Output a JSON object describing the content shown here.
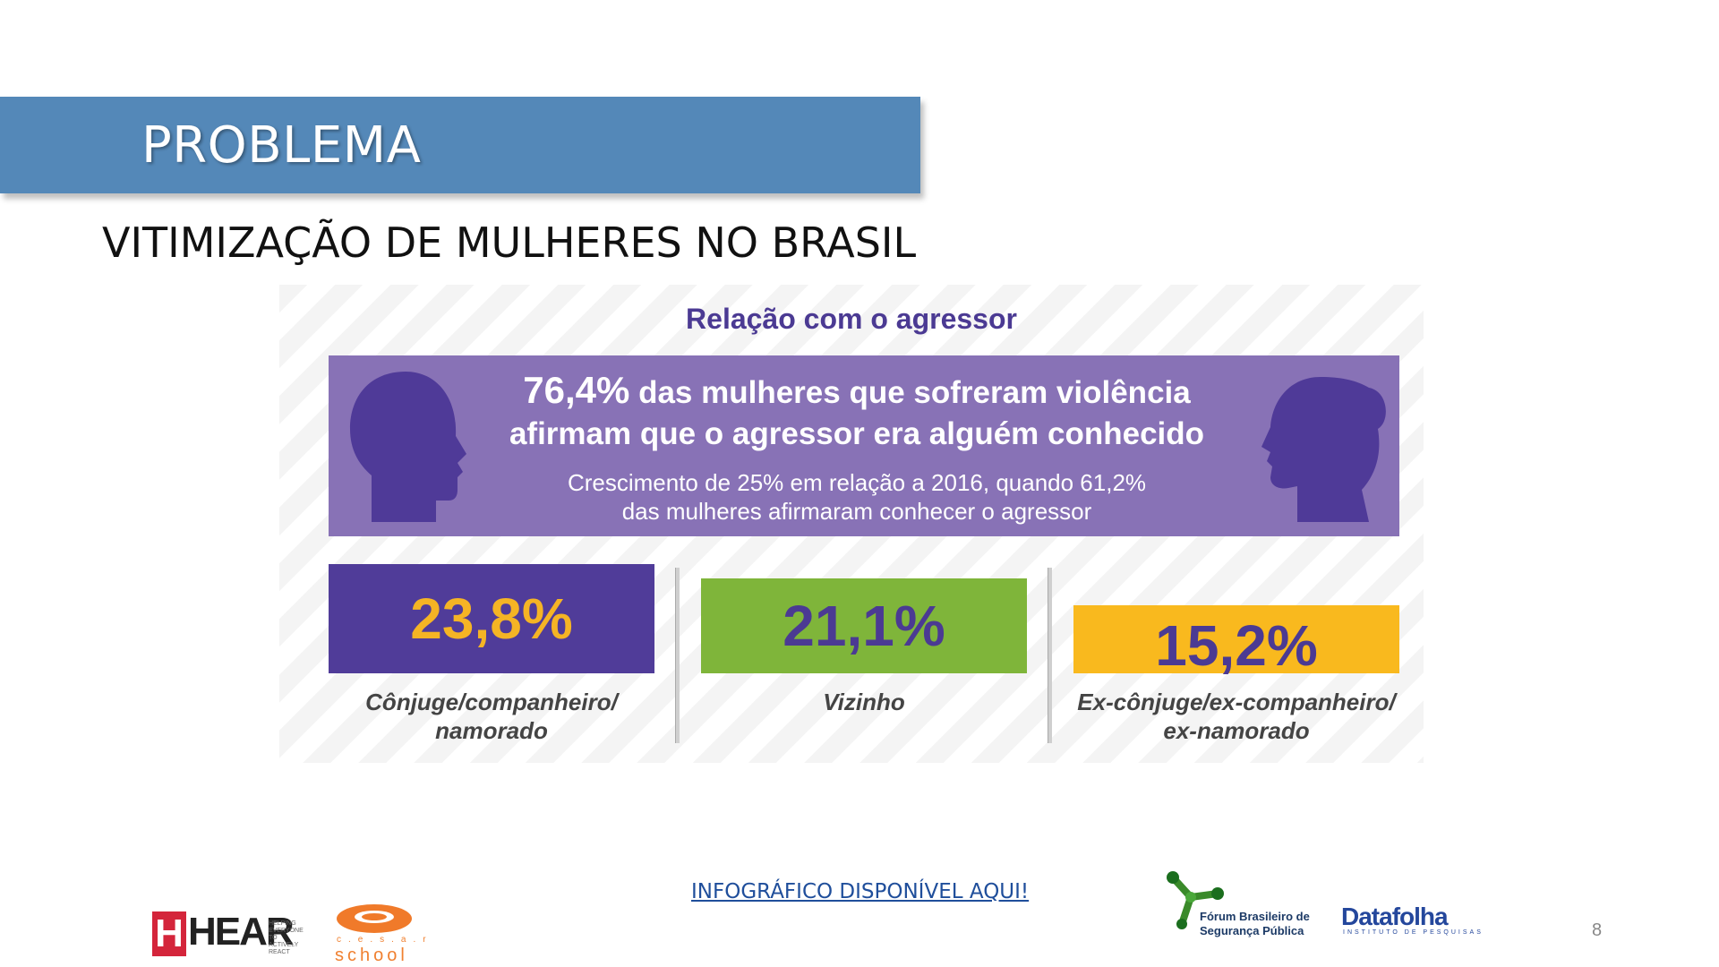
{
  "slide": {
    "title": "PROBLEMA",
    "subtitle": "VITIMIZAÇÃO DE MULHERES NO BRASIL",
    "page_number": "8"
  },
  "infographic": {
    "heading": "Relação com o agressor",
    "headline_pct": "76,4%",
    "headline_line1_rest": " das mulheres que sofreram violência",
    "headline_line2": "afirmam que o agressor era alguém conhecido",
    "growth_line1": "Crescimento de 25% em relação a 2016, quando 61,2%",
    "growth_line2": "das mulheres afirmaram conhecer o agressor",
    "stats": [
      {
        "value": "23,8%",
        "label_line1": "Cônjuge/companheiro/",
        "label_line2": "namorado",
        "box_color": "#503c99",
        "text_color": "#f5b425"
      },
      {
        "value": "21,1%",
        "label_line1": "Vizinho",
        "label_line2": "",
        "box_color": "#7fb53a",
        "text_color": "#4b3a93"
      },
      {
        "value": "15,2%",
        "label_line1": "Ex-cônjuge/ex-companheiro/",
        "label_line2": "ex-namorado",
        "box_color": "#f9b91e",
        "text_color": "#4b3a93"
      }
    ]
  },
  "link": {
    "text": "INFOGRÁFICO DISPONÍVEL AQUI!"
  },
  "logos": {
    "hear": {
      "h": "H",
      "text": "HEAR",
      "tagline": "HELPING EVERYONE TO ACTIVELY REACT"
    },
    "cesar": {
      "letters": "c.e.s.a.r",
      "school": "school"
    },
    "forum": {
      "line1": "Fórum Brasileiro de",
      "line2": "Segurança Pública"
    },
    "datafolha": {
      "name": "Datafolha",
      "sub": "INSTITUTO DE PESQUISAS"
    }
  },
  "colors": {
    "banner": "#5488b8",
    "purple_panel": "#8872b6",
    "heading": "#4b3a93",
    "link": "#1f4e9b"
  }
}
